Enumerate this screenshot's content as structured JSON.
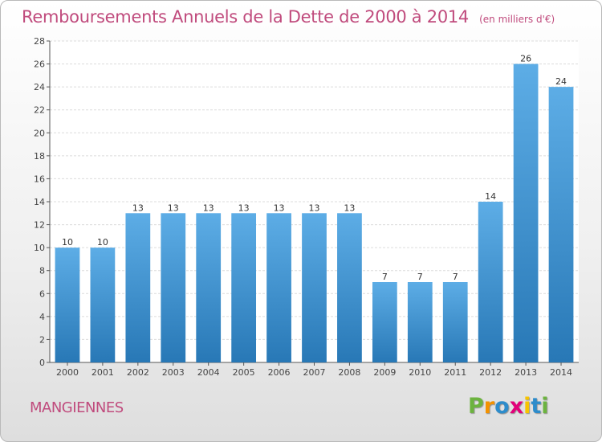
{
  "chart_data": {
    "type": "bar",
    "title": "Remboursements Annuels de la Dette de 2000 à 2014",
    "unit_note": "(en milliers d'€)",
    "categories": [
      "2000",
      "2001",
      "2002",
      "2003",
      "2004",
      "2005",
      "2006",
      "2007",
      "2008",
      "2009",
      "2010",
      "2011",
      "2012",
      "2013",
      "2014"
    ],
    "values": [
      10,
      10,
      13,
      13,
      13,
      13,
      13,
      13,
      13,
      7,
      7,
      7,
      14,
      26,
      24
    ],
    "ylim": [
      0,
      28
    ],
    "yticks": [
      0,
      2,
      4,
      6,
      8,
      10,
      12,
      14,
      16,
      18,
      20,
      22,
      24,
      26,
      28
    ],
    "grid": true,
    "bar_color_top": "#5dade6",
    "bar_color_bottom": "#2878b6"
  },
  "footer": {
    "city": "MANGIENNES",
    "brand_letters": [
      "P",
      "r",
      "o",
      "x",
      "i",
      "t",
      "i"
    ],
    "brand_colors": [
      "#6cb33f",
      "#f39200",
      "#2d8ccb",
      "#e2007a",
      "#f7c400",
      "#2d8ccb",
      "#6cb33f"
    ]
  }
}
